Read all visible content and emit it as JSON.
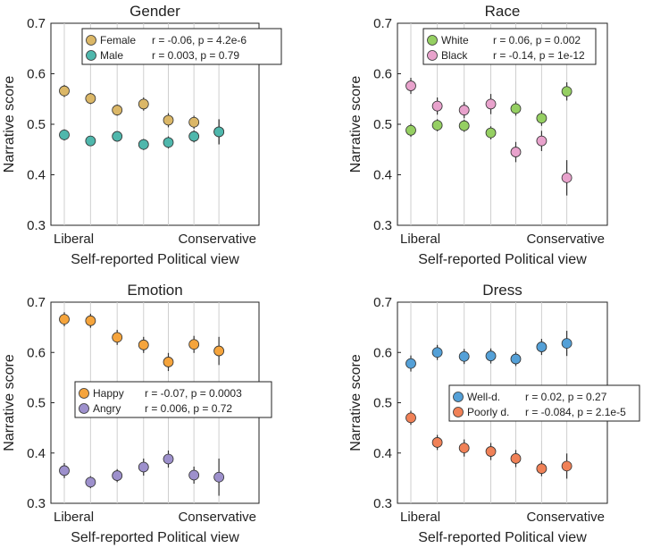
{
  "chart_data": [
    {
      "type": "scatter",
      "title": "Gender",
      "ylabel": "Narrative score",
      "xlabel": "Self-reported Political view",
      "x_tick_labels": [
        "Liberal",
        "Conservative"
      ],
      "ylim": [
        0.3,
        0.7
      ],
      "yticks": [
        "0.3",
        "0.4",
        "0.5",
        "0.6",
        "0.7"
      ],
      "x": [
        1,
        2,
        3,
        4,
        5,
        6,
        7
      ],
      "grid": "vertical",
      "legend_position": "top-right",
      "series": [
        {
          "name": "Female",
          "stat": "r = -0.06,  p = 4.2e-6",
          "color": "#dbb767",
          "values": [
            0.566,
            0.551,
            0.528,
            0.54,
            0.508,
            0.504,
            0.485
          ],
          "errors": [
            0.012,
            0.011,
            0.011,
            0.013,
            0.014,
            0.013,
            0.025
          ]
        },
        {
          "name": "Male",
          "stat": "r = 0.003,  p = 0.79",
          "color": "#4fb7ac",
          "values": [
            0.479,
            0.467,
            0.476,
            0.46,
            0.464,
            0.476,
            0.485
          ],
          "errors": [
            0.011,
            0.01,
            0.01,
            0.011,
            0.012,
            0.012,
            0.024
          ]
        }
      ]
    },
    {
      "type": "scatter",
      "title": "Race",
      "ylabel": "Narrative score",
      "xlabel": "Self-reported Political view",
      "x_tick_labels": [
        "Liberal",
        "Conservative"
      ],
      "ylim": [
        0.3,
        0.7
      ],
      "yticks": [
        "0.3",
        "0.4",
        "0.5",
        "0.6",
        "0.7"
      ],
      "x": [
        1,
        2,
        3,
        4,
        5,
        6,
        7
      ],
      "grid": "vertical",
      "legend_position": "top-right",
      "series": [
        {
          "name": "White",
          "stat": "r =  0.06,  p = 0.002",
          "color": "#95cf62",
          "values": [
            0.488,
            0.498,
            0.497,
            0.483,
            0.531,
            0.512,
            0.565
          ],
          "errors": [
            0.013,
            0.012,
            0.012,
            0.013,
            0.014,
            0.015,
            0.018
          ]
        },
        {
          "name": "Black",
          "stat": "r = -0.14,  p = 1e-12",
          "color": "#e8a2cc",
          "values": [
            0.576,
            0.536,
            0.528,
            0.54,
            0.445,
            0.467,
            0.394
          ],
          "errors": [
            0.016,
            0.017,
            0.016,
            0.02,
            0.02,
            0.02,
            0.035
          ]
        }
      ]
    },
    {
      "type": "scatter",
      "title": "Emotion",
      "ylabel": "Narrative score",
      "xlabel": "Self-reported Political view",
      "x_tick_labels": [
        "Liberal",
        "Conservative"
      ],
      "ylim": [
        0.3,
        0.7
      ],
      "yticks": [
        "0.3",
        "0.4",
        "0.5",
        "0.6",
        "0.7"
      ],
      "x": [
        1,
        2,
        3,
        4,
        5,
        6,
        7
      ],
      "grid": "vertical",
      "legend_position": "center-right",
      "series": [
        {
          "name": "Happy",
          "stat": "r = -0.07,  p = 0.0003",
          "color": "#f5a43c",
          "values": [
            0.666,
            0.663,
            0.63,
            0.615,
            0.581,
            0.616,
            0.603
          ],
          "errors": [
            0.014,
            0.014,
            0.015,
            0.016,
            0.018,
            0.017,
            0.028
          ]
        },
        {
          "name": "Angry",
          "stat": "r = 0.006, p = 0.72",
          "color": "#9d90cc",
          "values": [
            0.365,
            0.342,
            0.355,
            0.372,
            0.388,
            0.356,
            0.352
          ],
          "errors": [
            0.015,
            0.012,
            0.013,
            0.017,
            0.017,
            0.017,
            0.037
          ]
        }
      ]
    },
    {
      "type": "scatter",
      "title": "Dress",
      "ylabel": "Narrative score",
      "xlabel": "Self-reported Political view",
      "x_tick_labels": [
        "Liberal",
        "Conservative"
      ],
      "ylim": [
        0.3,
        0.7
      ],
      "yticks": [
        "0.3",
        "0.4",
        "0.5",
        "0.6",
        "0.7"
      ],
      "x": [
        1,
        2,
        3,
        4,
        5,
        6,
        7
      ],
      "grid": "vertical",
      "legend_position": "center-right",
      "series": [
        {
          "name": "Well-d.",
          "stat": "r =  0.02,  p = 0.27",
          "color": "#54a0d7",
          "values": [
            0.578,
            0.6,
            0.592,
            0.593,
            0.587,
            0.611,
            0.618
          ],
          "errors": [
            0.016,
            0.015,
            0.015,
            0.015,
            0.014,
            0.016,
            0.025
          ]
        },
        {
          "name": "Poorly d.",
          "stat": "r = -0.084, p = 2.1e-5",
          "color": "#f08157",
          "values": [
            0.47,
            0.421,
            0.41,
            0.403,
            0.389,
            0.369,
            0.374
          ],
          "errors": [
            0.014,
            0.015,
            0.017,
            0.017,
            0.017,
            0.015,
            0.025
          ]
        }
      ]
    }
  ]
}
